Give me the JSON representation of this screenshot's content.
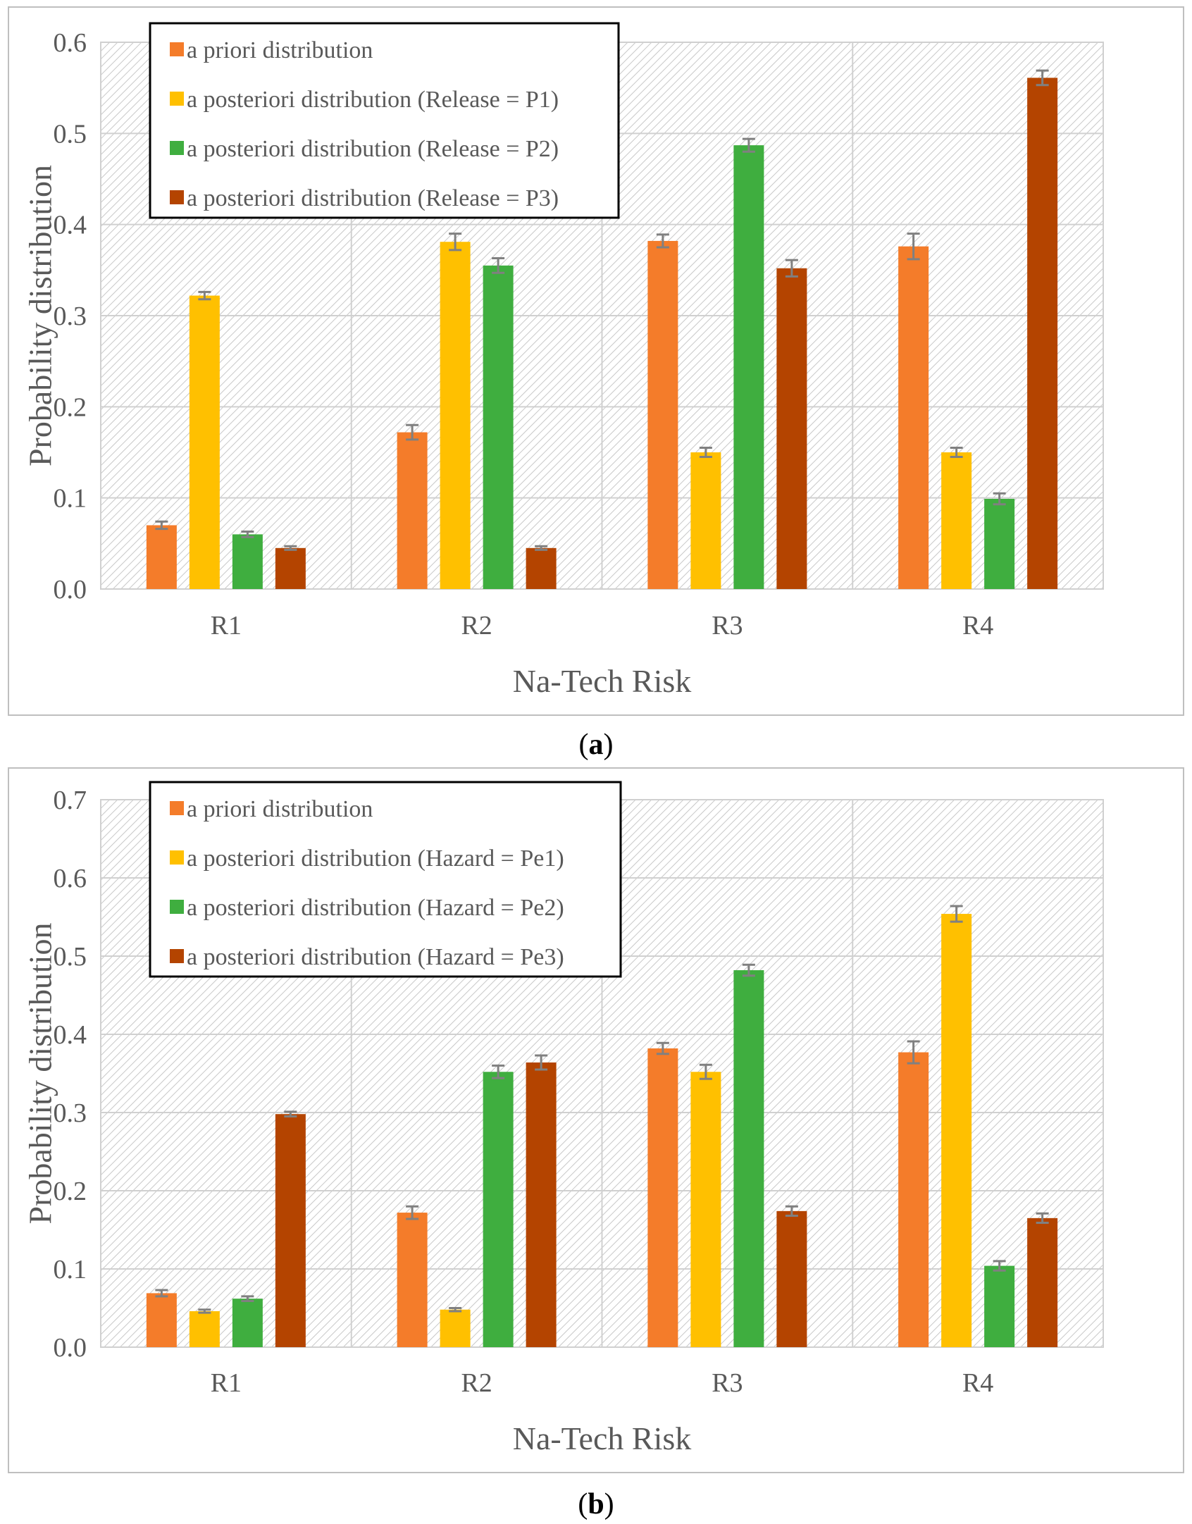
{
  "figure": {
    "panels": [
      {
        "label_open": "(",
        "label": "a",
        "label_close": ")"
      },
      {
        "label_open": "(",
        "label": "b",
        "label_close": ")"
      }
    ]
  },
  "colors": {
    "a_priori": "#f47c2a",
    "p1": "#ffc000",
    "p2": "#3fae3f",
    "p3": "#b44400",
    "error_bar": "#808080",
    "grid": "#d0d0d0",
    "hatch": "#c8c8c8",
    "frame": "#bfbfbf",
    "axis_text": "#595959"
  },
  "chart_data": [
    {
      "type": "bar",
      "panel": "a",
      "title": "",
      "xlabel": "Na-Tech Risk",
      "ylabel": "Probability distribution",
      "categories": [
        "R1",
        "R2",
        "R3",
        "R4"
      ],
      "ylim": [
        0,
        0.6
      ],
      "yticks": [
        "0.0",
        "0.1",
        "0.2",
        "0.3",
        "0.4",
        "0.5",
        "0.6"
      ],
      "grid": true,
      "legend_position": "top-left",
      "series": [
        {
          "name": "a priori distribution",
          "color_key": "a_priori",
          "values": [
            0.07,
            0.172,
            0.382,
            0.376
          ],
          "errors": [
            0.004,
            0.008,
            0.007,
            0.014
          ]
        },
        {
          "name": "a posteriori distribution (Release = P1)",
          "color_key": "p1",
          "values": [
            0.322,
            0.381,
            0.15,
            0.15
          ],
          "errors": [
            0.004,
            0.009,
            0.005,
            0.005
          ]
        },
        {
          "name": "a posteriori distribution (Release = P2)",
          "color_key": "p2",
          "values": [
            0.06,
            0.355,
            0.487,
            0.099
          ],
          "errors": [
            0.003,
            0.008,
            0.007,
            0.006
          ]
        },
        {
          "name": "a posteriori distribution (Release = P3)",
          "color_key": "p3",
          "values": [
            0.045,
            0.045,
            0.352,
            0.561
          ],
          "errors": [
            0.002,
            0.002,
            0.009,
            0.008
          ]
        }
      ]
    },
    {
      "type": "bar",
      "panel": "b",
      "title": "",
      "xlabel": "Na-Tech Risk",
      "ylabel": "Probability distribution",
      "categories": [
        "R1",
        "R2",
        "R3",
        "R4"
      ],
      "ylim": [
        0,
        0.7
      ],
      "yticks": [
        "0.0",
        "0.1",
        "0.2",
        "0.3",
        "0.4",
        "0.5",
        "0.6",
        "0.7"
      ],
      "grid": true,
      "legend_position": "top-left",
      "series": [
        {
          "name": "a priori distribution",
          "color_key": "a_priori",
          "values": [
            0.069,
            0.172,
            0.382,
            0.377
          ],
          "errors": [
            0.004,
            0.008,
            0.007,
            0.014
          ]
        },
        {
          "name": "a posteriori distribution (Hazard = Pe1)",
          "color_key": "p1",
          "values": [
            0.046,
            0.048,
            0.352,
            0.554
          ],
          "errors": [
            0.002,
            0.002,
            0.009,
            0.01
          ]
        },
        {
          "name": "a posteriori distribution (Hazard = Pe2)",
          "color_key": "p2",
          "values": [
            0.062,
            0.352,
            0.482,
            0.104
          ],
          "errors": [
            0.003,
            0.008,
            0.007,
            0.006
          ]
        },
        {
          "name": "a posteriori distribution (Hazard = Pe3)",
          "color_key": "p3",
          "values": [
            0.298,
            0.364,
            0.174,
            0.165
          ],
          "errors": [
            0.003,
            0.009,
            0.006,
            0.006
          ]
        }
      ]
    }
  ]
}
